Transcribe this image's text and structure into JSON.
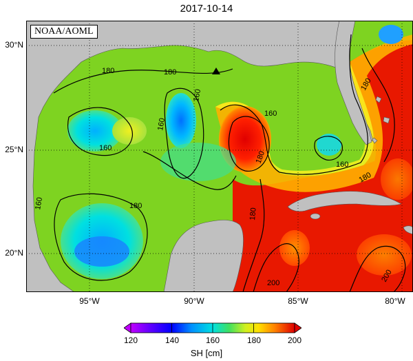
{
  "title": "2017-10-14",
  "credit": "NOAA/AOML",
  "lat_labels": [
    "30°N",
    "25°N",
    "20°N"
  ],
  "lon_labels": [
    "95°W",
    "90°W",
    "85°W",
    "80°W"
  ],
  "contour_labels": [
    "180",
    "180",
    "160",
    "160",
    "160",
    "180",
    "160",
    "160",
    "160",
    "180",
    "180",
    "180",
    "200",
    "200",
    "180"
  ],
  "colorbar": {
    "ticks": [
      "120",
      "140",
      "160",
      "180",
      "200"
    ],
    "unit": "SH [cm]",
    "range": [
      120,
      200
    ],
    "colors": [
      "#c000ff",
      "#0000ff",
      "#0090ff",
      "#00e0e0",
      "#40e060",
      "#d0f020",
      "#ffe000",
      "#ff8000",
      "#ff2000",
      "#e00000"
    ]
  },
  "markers": [
    {
      "name": "triangle",
      "color": "#000000"
    }
  ],
  "colors": {
    "land": "#c0c0c0",
    "ocean_high": "#e81800",
    "ocean_mid": "#7ed321",
    "ocean_low": "#00e0ff"
  }
}
